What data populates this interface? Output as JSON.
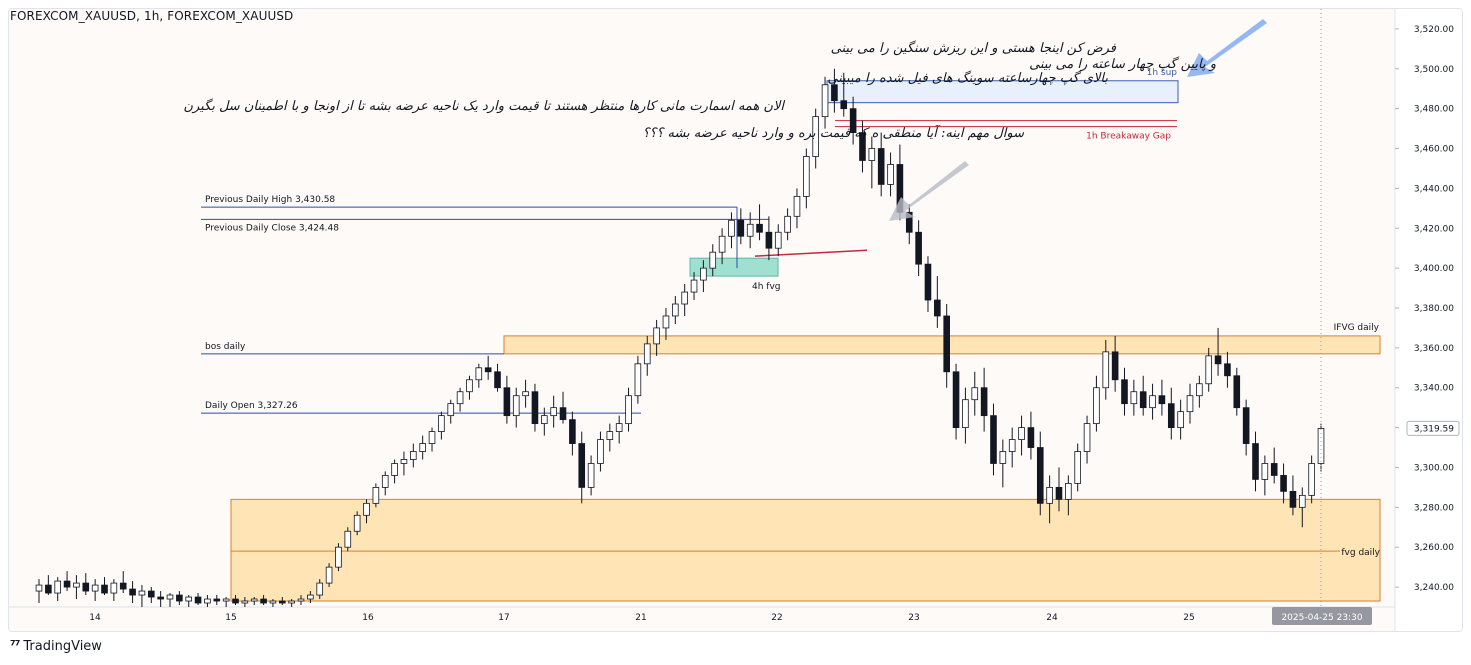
{
  "header": {
    "symbol": "FOREXCOM_XAUUSD, 1h, FOREXCOM_XAUUSD"
  },
  "footer": {
    "brand": "TradingView"
  },
  "notes": [
    "فرض کن اینجا هستی و این ریزش سنگین را می بینی",
    "و پایین گپ چهار ساعته را می بینی",
    "بالای گپ چهارساعته سوینگ های فیل شده را میبینی",
    "الان همه اسمارت مانی کارها منتظر هستند تا قیمت وارد یک ناحیه عرضه بشه تا از اونجا و با اطمینان سل بگیرن",
    "سوال مهم اینه: آیا منطقی ه که قیمت بره و وارد ناحیه عرضه بشه ؟؟؟"
  ],
  "colors": {
    "up": "#ffffff",
    "down": "#131722",
    "wick": "#131722",
    "level_line": "#2c4ea8",
    "zone_fill": "#ffe4b5",
    "zone_border": "#d9822b",
    "sup_fill": "#e8f0fc",
    "sup_border": "#3a5fb0",
    "gap": "#c5283d",
    "fvg_fill": "#9fe0d1",
    "arrow_blue": "#7ba7f0",
    "arrow_gray": "#b8bcc6"
  },
  "annotations": {
    "prev_daily_high": "Previous Daily High 3,430.58",
    "prev_daily_close": "Previous Daily Close 3,424.48",
    "bos_daily": "bos daily",
    "daily_open": "Daily Open 3,327.26",
    "sup_1h": "1h sup",
    "breakaway_gap": "1h Breakaway Gap",
    "fvg_4h": "4h fvg",
    "ifvg_daily": "IFVG daily",
    "fvg_daily": "fvg daily"
  },
  "chart_data": {
    "type": "candlestick",
    "ylim": [
      3230,
      3530
    ],
    "y_ticks": [
      3240,
      3260,
      3280,
      3300,
      3320,
      3340,
      3360,
      3380,
      3400,
      3420,
      3440,
      3460,
      3480,
      3500,
      3520
    ],
    "y_tick_labels": [
      "3,240.00",
      "3,260.00",
      "3,280.00",
      "3,300.00",
      "3,320.00",
      "3,340.00",
      "3,360.00",
      "3,380.00",
      "3,400.00",
      "3,420.00",
      "3,440.00",
      "3,460.00",
      "3,480.00",
      "3,500.00",
      "3,520.00"
    ],
    "x_ticks": [
      {
        "label": "14",
        "x": 0
      },
      {
        "label": "15",
        "x": 30
      },
      {
        "label": "16",
        "x": 60
      },
      {
        "label": "17",
        "x": 90
      },
      {
        "label": "21",
        "x": 120
      },
      {
        "label": "22",
        "x": 150
      },
      {
        "label": "23",
        "x": 180
      },
      {
        "label": "24",
        "x": 210
      },
      {
        "label": "25",
        "x": 240
      }
    ],
    "last_price": 3319.59,
    "last_price_label": "3,319.59",
    "crosshair_label": "2025-04-25   23:30",
    "levels": [
      {
        "name": "prev_daily_high",
        "value": 3430.58
      },
      {
        "name": "prev_daily_close",
        "value": 3424.48
      },
      {
        "name": "bos_daily",
        "value": 3357
      },
      {
        "name": "daily_open",
        "value": 3327.26
      }
    ],
    "zones": [
      {
        "name": "ifvg_daily",
        "from": 3357,
        "to": 3366
      },
      {
        "name": "fvg_daily",
        "from": 3233,
        "to": 3284,
        "mid": 3258
      },
      {
        "name": "sup_1h",
        "from": 3483,
        "to": 3494
      },
      {
        "name": "fvg_4h",
        "from": 3396,
        "to": 3405
      }
    ],
    "breakaway_gap": [
      3471,
      3474
    ],
    "candles": [
      [
        3238,
        3244,
        3232,
        3241
      ],
      [
        3241,
        3246,
        3236,
        3237
      ],
      [
        3237,
        3245,
        3233,
        3243
      ],
      [
        3243,
        3248,
        3238,
        3240
      ],
      [
        3240,
        3246,
        3234,
        3242
      ],
      [
        3242,
        3247,
        3236,
        3238
      ],
      [
        3238,
        3244,
        3233,
        3241
      ],
      [
        3241,
        3245,
        3236,
        3237
      ],
      [
        3237,
        3244,
        3233,
        3242
      ],
      [
        3242,
        3248,
        3237,
        3239
      ],
      [
        3239,
        3243,
        3232,
        3236
      ],
      [
        3236,
        3241,
        3230,
        3238
      ],
      [
        3238,
        3240,
        3232,
        3235
      ],
      [
        3235,
        3238,
        3230,
        3234
      ],
      [
        3234,
        3237,
        3230,
        3236
      ],
      [
        3236,
        3238,
        3231,
        3233
      ],
      [
        3233,
        3236,
        3230,
        3235
      ],
      [
        3235,
        3237,
        3231,
        3232
      ],
      [
        3232,
        3236,
        3230,
        3234
      ],
      [
        3234,
        3236,
        3231,
        3233
      ],
      [
        3233,
        3235,
        3230,
        3234
      ],
      [
        3234,
        3236,
        3231,
        3232
      ],
      [
        3232,
        3235,
        3230,
        3233
      ],
      [
        3233,
        3235,
        3231,
        3234
      ],
      [
        3234,
        3236,
        3231,
        3232
      ],
      [
        3232,
        3234,
        3230,
        3233
      ],
      [
        3233,
        3235,
        3231,
        3232
      ],
      [
        3232,
        3234,
        3230,
        3233
      ],
      [
        3233,
        3236,
        3231,
        3234
      ],
      [
        3234,
        3238,
        3232,
        3236
      ],
      [
        3236,
        3244,
        3234,
        3242
      ],
      [
        3242,
        3252,
        3240,
        3250
      ],
      [
        3250,
        3262,
        3248,
        3260
      ],
      [
        3260,
        3270,
        3258,
        3268
      ],
      [
        3268,
        3278,
        3266,
        3276
      ],
      [
        3276,
        3284,
        3272,
        3282
      ],
      [
        3282,
        3292,
        3280,
        3290
      ],
      [
        3290,
        3298,
        3286,
        3296
      ],
      [
        3296,
        3304,
        3292,
        3302
      ],
      [
        3302,
        3308,
        3296,
        3304
      ],
      [
        3304,
        3312,
        3300,
        3308
      ],
      [
        3308,
        3316,
        3304,
        3312
      ],
      [
        3312,
        3320,
        3308,
        3318
      ],
      [
        3318,
        3328,
        3314,
        3326
      ],
      [
        3326,
        3334,
        3322,
        3332
      ],
      [
        3332,
        3340,
        3328,
        3338
      ],
      [
        3338,
        3346,
        3334,
        3344
      ],
      [
        3344,
        3352,
        3340,
        3350
      ],
      [
        3350,
        3356,
        3344,
        3348
      ],
      [
        3348,
        3352,
        3338,
        3340
      ],
      [
        3340,
        3346,
        3322,
        3326
      ],
      [
        3326,
        3340,
        3320,
        3336
      ],
      [
        3336,
        3344,
        3330,
        3338
      ],
      [
        3338,
        3342,
        3318,
        3322
      ],
      [
        3322,
        3330,
        3316,
        3326
      ],
      [
        3326,
        3336,
        3320,
        3330
      ],
      [
        3330,
        3338,
        3322,
        3324
      ],
      [
        3324,
        3328,
        3306,
        3312
      ],
      [
        3312,
        3318,
        3282,
        3290
      ],
      [
        3290,
        3306,
        3286,
        3302
      ],
      [
        3302,
        3318,
        3298,
        3314
      ],
      [
        3314,
        3322,
        3308,
        3318
      ],
      [
        3318,
        3326,
        3312,
        3322
      ],
      [
        3322,
        3340,
        3318,
        3336
      ],
      [
        3336,
        3356,
        3332,
        3352
      ],
      [
        3352,
        3366,
        3346,
        3362
      ],
      [
        3362,
        3374,
        3356,
        3370
      ],
      [
        3370,
        3380,
        3364,
        3376
      ],
      [
        3376,
        3386,
        3372,
        3382
      ],
      [
        3382,
        3392,
        3376,
        3388
      ],
      [
        3388,
        3398,
        3384,
        3394
      ],
      [
        3394,
        3404,
        3388,
        3400
      ],
      [
        3400,
        3412,
        3396,
        3408
      ],
      [
        3408,
        3420,
        3402,
        3416
      ],
      [
        3416,
        3428,
        3410,
        3424
      ],
      [
        3424,
        3430,
        3412,
        3416
      ],
      [
        3416,
        3428,
        3410,
        3422
      ],
      [
        3422,
        3432,
        3414,
        3418
      ],
      [
        3418,
        3426,
        3404,
        3410
      ],
      [
        3410,
        3422,
        3406,
        3418
      ],
      [
        3418,
        3430,
        3414,
        3426
      ],
      [
        3426,
        3440,
        3420,
        3436
      ],
      [
        3436,
        3460,
        3430,
        3456
      ],
      [
        3456,
        3480,
        3450,
        3476
      ],
      [
        3476,
        3496,
        3470,
        3492
      ],
      [
        3492,
        3500,
        3478,
        3484
      ],
      [
        3484,
        3498,
        3476,
        3480
      ],
      [
        3480,
        3486,
        3462,
        3468
      ],
      [
        3468,
        3474,
        3448,
        3454
      ],
      [
        3454,
        3466,
        3440,
        3460
      ],
      [
        3460,
        3468,
        3436,
        3442
      ],
      [
        3442,
        3458,
        3436,
        3452
      ],
      [
        3452,
        3462,
        3424,
        3428
      ],
      [
        3428,
        3432,
        3412,
        3418
      ],
      [
        3418,
        3424,
        3396,
        3402
      ],
      [
        3402,
        3406,
        3378,
        3384
      ],
      [
        3384,
        3396,
        3370,
        3376
      ],
      [
        3376,
        3382,
        3340,
        3348
      ],
      [
        3348,
        3352,
        3314,
        3320
      ],
      [
        3320,
        3340,
        3312,
        3334
      ],
      [
        3334,
        3348,
        3326,
        3340
      ],
      [
        3340,
        3350,
        3318,
        3326
      ],
      [
        3326,
        3332,
        3296,
        3302
      ],
      [
        3302,
        3314,
        3290,
        3308
      ],
      [
        3308,
        3320,
        3300,
        3314
      ],
      [
        3314,
        3326,
        3306,
        3320
      ],
      [
        3320,
        3328,
        3304,
        3310
      ],
      [
        3310,
        3318,
        3276,
        3282
      ],
      [
        3282,
        3296,
        3272,
        3290
      ],
      [
        3290,
        3300,
        3278,
        3284
      ],
      [
        3284,
        3296,
        3276,
        3292
      ],
      [
        3292,
        3312,
        3288,
        3308
      ],
      [
        3308,
        3326,
        3302,
        3322
      ],
      [
        3322,
        3346,
        3318,
        3340
      ],
      [
        3340,
        3364,
        3334,
        3358
      ],
      [
        3358,
        3366,
        3338,
        3344
      ],
      [
        3344,
        3350,
        3326,
        3332
      ],
      [
        3332,
        3344,
        3326,
        3338
      ],
      [
        3338,
        3346,
        3326,
        3330
      ],
      [
        3330,
        3342,
        3324,
        3336
      ],
      [
        3336,
        3344,
        3326,
        3332
      ],
      [
        3332,
        3340,
        3314,
        3320
      ],
      [
        3320,
        3334,
        3314,
        3328
      ],
      [
        3328,
        3342,
        3322,
        3336
      ],
      [
        3336,
        3346,
        3330,
        3342
      ],
      [
        3342,
        3360,
        3338,
        3356
      ],
      [
        3356,
        3370,
        3346,
        3352
      ],
      [
        3352,
        3358,
        3340,
        3346
      ],
      [
        3346,
        3350,
        3326,
        3330
      ],
      [
        3330,
        3334,
        3306,
        3312
      ],
      [
        3312,
        3318,
        3288,
        3294
      ],
      [
        3294,
        3306,
        3286,
        3302
      ],
      [
        3302,
        3310,
        3292,
        3296
      ],
      [
        3296,
        3302,
        3282,
        3288
      ],
      [
        3288,
        3296,
        3276,
        3280
      ],
      [
        3280,
        3290,
        3270,
        3286
      ],
      [
        3286,
        3306,
        3282,
        3302
      ],
      [
        3302,
        3322,
        3298,
        3319.59
      ]
    ]
  }
}
